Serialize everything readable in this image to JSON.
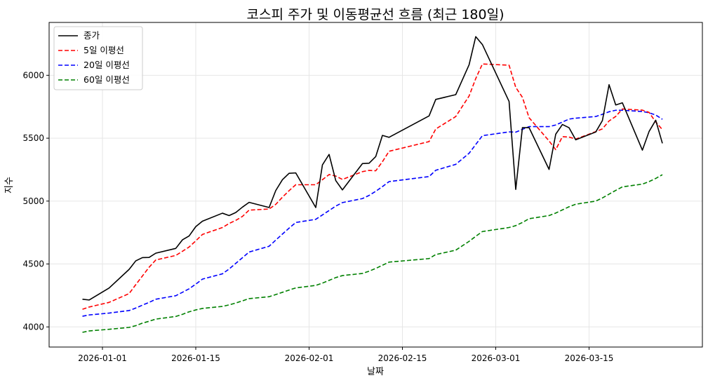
{
  "chart_data": {
    "type": "line",
    "title": "코스피 주가 및 이동평균선 흐름 (최근 180일)",
    "xlabel": "날짜",
    "ylabel": "지수",
    "xlim": [
      "2025-12-24",
      "2026-04-01"
    ],
    "ylim": [
      3840,
      6420
    ],
    "grid": true,
    "legend_position": "top-left",
    "x_ticks": [
      "2026-01-01",
      "2026-01-15",
      "2026-02-01",
      "2026-02-15",
      "2026-03-01",
      "2026-03-15"
    ],
    "y_ticks": [
      4000,
      4500,
      5000,
      5500,
      6000
    ],
    "series": [
      {
        "name": "종가",
        "color": "#000000",
        "style": "solid",
        "points": [
          [
            "2025-12-29",
            4220
          ],
          [
            "2025-12-30",
            4214
          ],
          [
            "2026-01-02",
            4309
          ],
          [
            "2026-01-05",
            4457
          ],
          [
            "2026-01-06",
            4525
          ],
          [
            "2026-01-07",
            4551
          ],
          [
            "2026-01-08",
            4552
          ],
          [
            "2026-01-09",
            4586
          ],
          [
            "2026-01-12",
            4624
          ],
          [
            "2026-01-13",
            4692
          ],
          [
            "2026-01-14",
            4723
          ],
          [
            "2026-01-15",
            4797
          ],
          [
            "2026-01-16",
            4840
          ],
          [
            "2026-01-19",
            4904
          ],
          [
            "2026-01-20",
            4885
          ],
          [
            "2026-01-21",
            4909
          ],
          [
            "2026-01-22",
            4952
          ],
          [
            "2026-01-23",
            4990
          ],
          [
            "2026-01-26",
            4949
          ],
          [
            "2026-01-27",
            5084
          ],
          [
            "2026-01-28",
            5170
          ],
          [
            "2026-01-29",
            5221
          ],
          [
            "2026-01-30",
            5224
          ],
          [
            "2026-02-02",
            4949
          ],
          [
            "2026-02-03",
            5288
          ],
          [
            "2026-02-04",
            5371
          ],
          [
            "2026-02-05",
            5163
          ],
          [
            "2026-02-06",
            5089
          ],
          [
            "2026-02-09",
            5298
          ],
          [
            "2026-02-10",
            5301
          ],
          [
            "2026-02-11",
            5354
          ],
          [
            "2026-02-12",
            5522
          ],
          [
            "2026-02-13",
            5507
          ],
          [
            "2026-02-19",
            5677
          ],
          [
            "2026-02-20",
            5808
          ],
          [
            "2026-02-23",
            5846
          ],
          [
            "2026-02-25",
            6083
          ],
          [
            "2026-02-26",
            6307
          ],
          [
            "2026-02-27",
            6244
          ],
          [
            "2026-03-03",
            5792
          ],
          [
            "2026-03-04",
            5093
          ],
          [
            "2026-03-05",
            5584
          ],
          [
            "2026-03-06",
            5584
          ],
          [
            "2026-03-09",
            5252
          ],
          [
            "2026-03-10",
            5532
          ],
          [
            "2026-03-11",
            5609
          ],
          [
            "2026-03-12",
            5583
          ],
          [
            "2026-03-13",
            5487
          ],
          [
            "2026-03-16",
            5549
          ],
          [
            "2026-03-17",
            5640
          ],
          [
            "2026-03-18",
            5925
          ],
          [
            "2026-03-19",
            5764
          ],
          [
            "2026-03-20",
            5781
          ],
          [
            "2026-03-23",
            5405
          ],
          [
            "2026-03-24",
            5553
          ],
          [
            "2026-03-25",
            5643
          ],
          [
            "2026-03-26",
            5459
          ]
        ]
      },
      {
        "name": "5일 이평선",
        "color": "#ff0000",
        "style": "dashed",
        "points": [
          [
            "2025-12-29",
            4140
          ],
          [
            "2025-12-30",
            4158
          ],
          [
            "2026-01-02",
            4195
          ],
          [
            "2026-01-05",
            4265
          ],
          [
            "2026-01-06",
            4336
          ],
          [
            "2026-01-07",
            4405
          ],
          [
            "2026-01-08",
            4474
          ],
          [
            "2026-01-09",
            4532
          ],
          [
            "2026-01-12",
            4568
          ],
          [
            "2026-01-13",
            4601
          ],
          [
            "2026-01-14",
            4635
          ],
          [
            "2026-01-15",
            4684
          ],
          [
            "2026-01-16",
            4735
          ],
          [
            "2026-01-19",
            4790
          ],
          [
            "2026-01-20",
            4822
          ],
          [
            "2026-01-21",
            4847
          ],
          [
            "2026-01-22",
            4878
          ],
          [
            "2026-01-23",
            4928
          ],
          [
            "2026-01-26",
            4937
          ],
          [
            "2026-01-27",
            4974
          ],
          [
            "2026-01-28",
            5031
          ],
          [
            "2026-01-29",
            5083
          ],
          [
            "2026-01-30",
            5130
          ],
          [
            "2026-02-02",
            5130
          ],
          [
            "2026-02-03",
            5170
          ],
          [
            "2026-02-04",
            5211
          ],
          [
            "2026-02-05",
            5199
          ],
          [
            "2026-02-06",
            5172
          ],
          [
            "2026-02-09",
            5234
          ],
          [
            "2026-02-10",
            5244
          ],
          [
            "2026-02-11",
            5241
          ],
          [
            "2026-02-12",
            5313
          ],
          [
            "2026-02-13",
            5396
          ],
          [
            "2026-02-19",
            5473
          ],
          [
            "2026-02-20",
            5573
          ],
          [
            "2026-02-23",
            5672
          ],
          [
            "2026-02-25",
            5835
          ],
          [
            "2026-02-26",
            5974
          ],
          [
            "2026-02-27",
            6090
          ],
          [
            "2026-03-03",
            6080
          ],
          [
            "2026-03-04",
            5904
          ],
          [
            "2026-03-05",
            5825
          ],
          [
            "2026-03-06",
            5663
          ],
          [
            "2026-03-09",
            5478
          ],
          [
            "2026-03-10",
            5409
          ],
          [
            "2026-03-11",
            5512
          ],
          [
            "2026-03-12",
            5509
          ],
          [
            "2026-03-13",
            5493
          ],
          [
            "2026-03-16",
            5552
          ],
          [
            "2026-03-17",
            5574
          ],
          [
            "2026-03-18",
            5637
          ],
          [
            "2026-03-19",
            5673
          ],
          [
            "2026-03-20",
            5732
          ],
          [
            "2026-03-23",
            5723
          ],
          [
            "2026-03-24",
            5705
          ],
          [
            "2026-03-25",
            5629
          ],
          [
            "2026-03-26",
            5568
          ]
        ]
      },
      {
        "name": "20일 이평선",
        "color": "#0000ff",
        "style": "dashed",
        "points": [
          [
            "2025-12-29",
            4085
          ],
          [
            "2025-12-30",
            4095
          ],
          [
            "2026-01-02",
            4110
          ],
          [
            "2026-01-05",
            4130
          ],
          [
            "2026-01-06",
            4150
          ],
          [
            "2026-01-07",
            4173
          ],
          [
            "2026-01-08",
            4195
          ],
          [
            "2026-01-09",
            4220
          ],
          [
            "2026-01-12",
            4248
          ],
          [
            "2026-01-13",
            4275
          ],
          [
            "2026-01-14",
            4303
          ],
          [
            "2026-01-15",
            4340
          ],
          [
            "2026-01-16",
            4380
          ],
          [
            "2026-01-19",
            4422
          ],
          [
            "2026-01-20",
            4460
          ],
          [
            "2026-01-21",
            4505
          ],
          [
            "2026-01-22",
            4550
          ],
          [
            "2026-01-23",
            4595
          ],
          [
            "2026-01-26",
            4641
          ],
          [
            "2026-01-27",
            4690
          ],
          [
            "2026-01-28",
            4738
          ],
          [
            "2026-01-29",
            4785
          ],
          [
            "2026-01-30",
            4830
          ],
          [
            "2026-02-02",
            4855
          ],
          [
            "2026-02-03",
            4890
          ],
          [
            "2026-02-04",
            4925
          ],
          [
            "2026-02-05",
            4960
          ],
          [
            "2026-02-06",
            4988
          ],
          [
            "2026-02-09",
            5020
          ],
          [
            "2026-02-10",
            5045
          ],
          [
            "2026-02-11",
            5078
          ],
          [
            "2026-02-12",
            5115
          ],
          [
            "2026-02-13",
            5155
          ],
          [
            "2026-02-19",
            5195
          ],
          [
            "2026-02-20",
            5245
          ],
          [
            "2026-02-23",
            5292
          ],
          [
            "2026-02-25",
            5380
          ],
          [
            "2026-02-26",
            5450
          ],
          [
            "2026-02-27",
            5520
          ],
          [
            "2026-03-03",
            5550
          ],
          [
            "2026-03-04",
            5548
          ],
          [
            "2026-03-05",
            5570
          ],
          [
            "2026-03-06",
            5592
          ],
          [
            "2026-03-09",
            5592
          ],
          [
            "2026-03-10",
            5605
          ],
          [
            "2026-03-11",
            5628
          ],
          [
            "2026-03-12",
            5652
          ],
          [
            "2026-03-13",
            5659
          ],
          [
            "2026-03-16",
            5672
          ],
          [
            "2026-03-17",
            5690
          ],
          [
            "2026-03-18",
            5710
          ],
          [
            "2026-03-19",
            5722
          ],
          [
            "2026-03-20",
            5722
          ],
          [
            "2026-03-23",
            5712
          ],
          [
            "2026-03-24",
            5702
          ],
          [
            "2026-03-25",
            5684
          ],
          [
            "2026-03-26",
            5650
          ]
        ]
      },
      {
        "name": "60일 이평선",
        "color": "#008000",
        "style": "dashed",
        "points": [
          [
            "2025-12-29",
            3957
          ],
          [
            "2025-12-30",
            3968
          ],
          [
            "2026-01-02",
            3981
          ],
          [
            "2026-01-05",
            3996
          ],
          [
            "2026-01-06",
            4010
          ],
          [
            "2026-01-07",
            4030
          ],
          [
            "2026-01-08",
            4045
          ],
          [
            "2026-01-09",
            4062
          ],
          [
            "2026-01-12",
            4083
          ],
          [
            "2026-01-13",
            4100
          ],
          [
            "2026-01-14",
            4120
          ],
          [
            "2026-01-15",
            4135
          ],
          [
            "2026-01-16",
            4147
          ],
          [
            "2026-01-19",
            4163
          ],
          [
            "2026-01-20",
            4175
          ],
          [
            "2026-01-21",
            4190
          ],
          [
            "2026-01-22",
            4207
          ],
          [
            "2026-01-23",
            4225
          ],
          [
            "2026-01-26",
            4240
          ],
          [
            "2026-01-27",
            4257
          ],
          [
            "2026-01-28",
            4275
          ],
          [
            "2026-01-29",
            4293
          ],
          [
            "2026-01-30",
            4310
          ],
          [
            "2026-02-02",
            4330
          ],
          [
            "2026-02-03",
            4348
          ],
          [
            "2026-02-04",
            4370
          ],
          [
            "2026-02-05",
            4392
          ],
          [
            "2026-02-06",
            4408
          ],
          [
            "2026-02-09",
            4425
          ],
          [
            "2026-02-10",
            4443
          ],
          [
            "2026-02-11",
            4465
          ],
          [
            "2026-02-12",
            4490
          ],
          [
            "2026-02-13",
            4515
          ],
          [
            "2026-02-19",
            4543
          ],
          [
            "2026-02-20",
            4575
          ],
          [
            "2026-02-23",
            4610
          ],
          [
            "2026-02-25",
            4680
          ],
          [
            "2026-02-26",
            4720
          ],
          [
            "2026-02-27",
            4758
          ],
          [
            "2026-03-03",
            4790
          ],
          [
            "2026-03-04",
            4805
          ],
          [
            "2026-03-05",
            4830
          ],
          [
            "2026-03-06",
            4860
          ],
          [
            "2026-03-09",
            4885
          ],
          [
            "2026-03-10",
            4905
          ],
          [
            "2026-03-11",
            4930
          ],
          [
            "2026-03-12",
            4955
          ],
          [
            "2026-03-13",
            4975
          ],
          [
            "2026-03-16",
            5000
          ],
          [
            "2026-03-17",
            5025
          ],
          [
            "2026-03-18",
            5055
          ],
          [
            "2026-03-19",
            5085
          ],
          [
            "2026-03-20",
            5113
          ],
          [
            "2026-03-23",
            5135
          ],
          [
            "2026-03-24",
            5155
          ],
          [
            "2026-03-25",
            5180
          ],
          [
            "2026-03-26",
            5210
          ]
        ]
      }
    ]
  }
}
